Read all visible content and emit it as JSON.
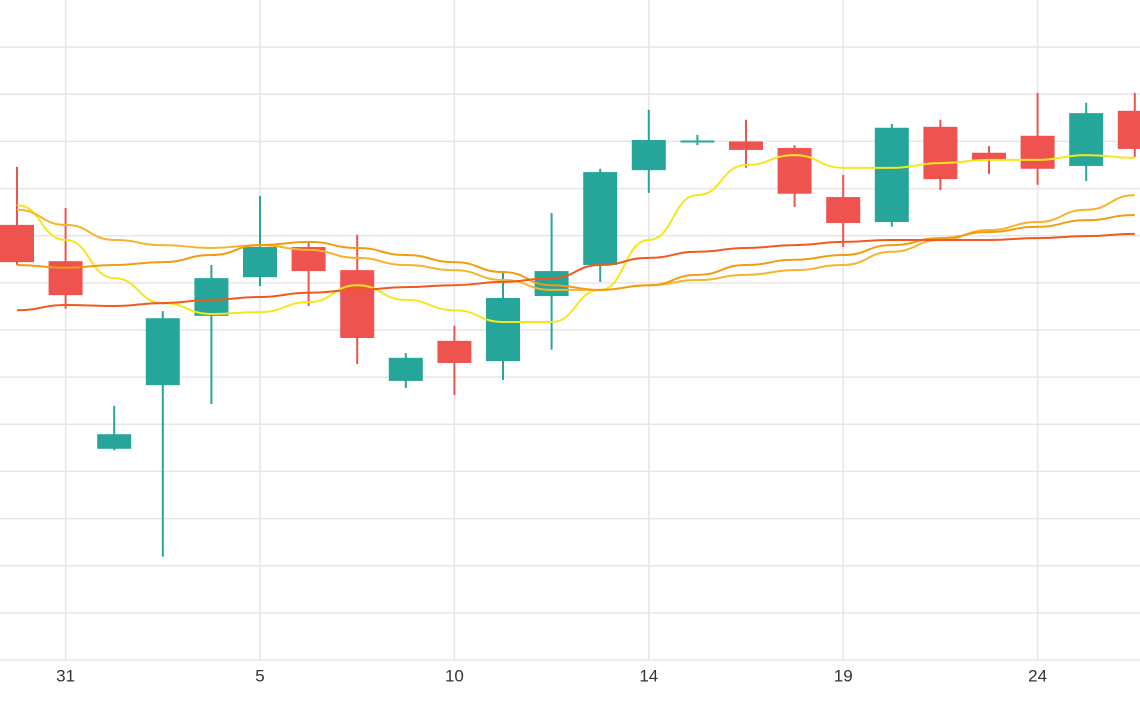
{
  "chart_data": {
    "type": "candlestick",
    "categories": [
      null,
      "31",
      null,
      null,
      null,
      "5",
      null,
      null,
      null,
      "10",
      null,
      null,
      null,
      "14",
      null,
      null,
      null,
      "19",
      null,
      null,
      null,
      "24",
      null,
      null
    ],
    "open": [
      9.23,
      8.46,
      4.48,
      5.83,
      7.3,
      8.12,
      8.76,
      8.27,
      5.92,
      6.77,
      6.34,
      7.72,
      8.38,
      10.39,
      11.0,
      11.0,
      10.86,
      9.82,
      9.29,
      11.31,
      10.76,
      11.12,
      10.48,
      11.65
    ],
    "high": [
      10.46,
      9.59,
      5.39,
      7.4,
      8.38,
      9.84,
      8.87,
      9.02,
      6.51,
      7.09,
      8.23,
      9.48,
      10.42,
      11.67,
      11.14,
      11.46,
      10.92,
      10.29,
      11.37,
      11.46,
      10.9,
      12.03,
      11.82,
      12.03
    ],
    "low": [
      8.38,
      7.45,
      4.45,
      2.19,
      5.43,
      7.93,
      7.51,
      6.28,
      5.77,
      5.62,
      5.94,
      6.58,
      8.02,
      9.91,
      10.92,
      10.44,
      9.61,
      8.76,
      9.19,
      9.97,
      10.31,
      10.08,
      10.16,
      10.67
    ],
    "close": [
      8.44,
      7.74,
      4.79,
      7.25,
      8.1,
      8.76,
      8.25,
      6.83,
      6.41,
      6.3,
      7.68,
      8.25,
      10.35,
      11.03,
      11.02,
      10.82,
      9.89,
      9.27,
      11.29,
      10.2,
      10.61,
      10.42,
      11.6,
      10.84
    ],
    "up_color": "#26a69a",
    "down_color": "#ef5350",
    "series": [
      {
        "color": "#f5e61e",
        "values": [
          9.65,
          8.91,
          8.1,
          7.57,
          7.34,
          7.38,
          7.59,
          7.95,
          7.64,
          7.42,
          7.17,
          7.17,
          7.85,
          8.91,
          9.86,
          10.5,
          10.71,
          10.44,
          10.44,
          10.54,
          10.61,
          10.61,
          10.71,
          10.65
        ]
      },
      {
        "color": "#f7b32b",
        "values": [
          9.55,
          9.23,
          8.91,
          8.8,
          8.74,
          8.8,
          8.7,
          8.53,
          8.38,
          8.27,
          8.06,
          7.85,
          7.85,
          7.95,
          8.06,
          8.17,
          8.27,
          8.38,
          8.66,
          8.91,
          9.12,
          9.29,
          9.55,
          9.86
        ]
      },
      {
        "color": "#f39c12",
        "values": [
          8.38,
          8.32,
          8.38,
          8.44,
          8.59,
          8.8,
          8.87,
          8.74,
          8.59,
          8.44,
          8.23,
          7.95,
          7.85,
          7.95,
          8.17,
          8.38,
          8.49,
          8.59,
          8.8,
          8.95,
          9.08,
          9.19,
          9.33,
          9.44
        ]
      },
      {
        "color": "#f05a1e",
        "values": [
          7.42,
          7.53,
          7.51,
          7.57,
          7.64,
          7.7,
          7.79,
          7.85,
          7.91,
          7.95,
          8.02,
          8.1,
          8.38,
          8.53,
          8.66,
          8.74,
          8.8,
          8.87,
          8.91,
          8.91,
          8.91,
          8.95,
          8.99,
          9.04
        ]
      }
    ],
    "ylim": [
      0,
      14
    ],
    "yticks": [
      0,
      1,
      2,
      3,
      4,
      5,
      6,
      7,
      8,
      9,
      10,
      11,
      12,
      13
    ],
    "grid": true
  }
}
